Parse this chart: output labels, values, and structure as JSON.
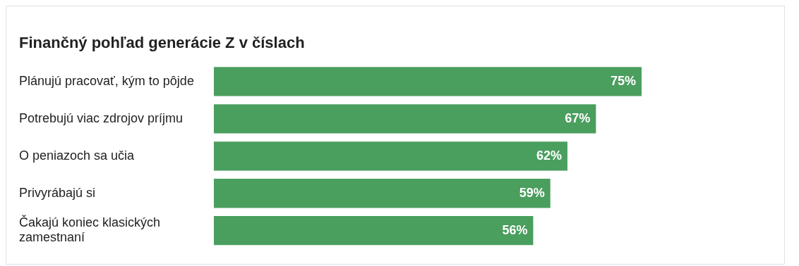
{
  "chart_data": {
    "type": "bar",
    "orientation": "horizontal",
    "title": "Finančný pohľad generácie Z v číslach",
    "categories": [
      "Plánujú pracovať, kým to pôjde",
      "Potrebujú viac zdrojov príjmu",
      "O peniazoch sa učia",
      "Privyrábajú si",
      "Čakajú koniec klasických zamestnaní"
    ],
    "values": [
      75,
      67,
      62,
      59,
      56
    ],
    "value_labels": [
      "75%",
      "67%",
      "62%",
      "59%",
      "56%"
    ],
    "color": "#4a9e5e",
    "xlim": [
      0,
      100
    ],
    "legend": false
  }
}
